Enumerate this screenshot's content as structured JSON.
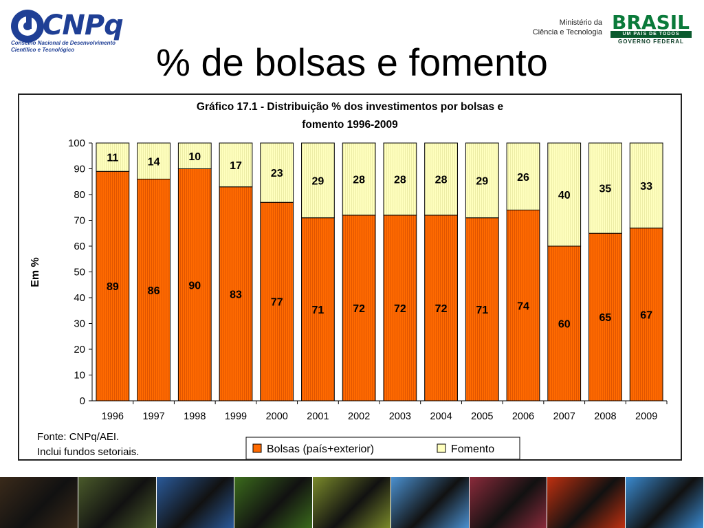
{
  "header": {
    "org_name": "CNPq",
    "org_subtitle_line1": "Conselho Nacional de Desenvolvimento",
    "org_subtitle_line2": "Científico e Tecnológico",
    "ministry_line1": "Ministério da",
    "ministry_line2": "Ciência e Tecnologia",
    "brasil_logo_text": "BRASIL",
    "brasil_tagline": "UM PAÍS DE TODOS",
    "brasil_gov": "GOVERNO FEDERAL"
  },
  "slide": {
    "title": "% de bolsas e fomento"
  },
  "chart_data": {
    "type": "bar",
    "stacked": true,
    "title_line1": "Gráfico 17.1 - Distribuição % dos investimentos por bolsas e",
    "title_line2": "fomento 1996-2009",
    "ylabel": "Em %",
    "xlabel": "",
    "ylim": [
      0,
      100
    ],
    "yticks": [
      0,
      10,
      20,
      30,
      40,
      50,
      60,
      70,
      80,
      90,
      100
    ],
    "categories": [
      "1996",
      "1997",
      "1998",
      "1999",
      "2000",
      "2001",
      "2002",
      "2003",
      "2004",
      "2005",
      "2006",
      "2007",
      "2008",
      "2009"
    ],
    "series": [
      {
        "name": "Bolsas (país+exterior)",
        "color": "#ff6a00",
        "values": [
          89,
          86,
          90,
          83,
          77,
          71,
          72,
          72,
          72,
          71,
          74,
          60,
          65,
          67
        ]
      },
      {
        "name": "Fomento",
        "color": "#ffffbe",
        "values": [
          11,
          14,
          10,
          17,
          23,
          29,
          28,
          28,
          28,
          29,
          26,
          40,
          35,
          33
        ]
      }
    ],
    "legend_position": "bottom",
    "grid": false,
    "note_line1": "Fonte: CNPq/AEI.",
    "note_line2": "Inclui fundos setoriais."
  },
  "footer": {
    "photos": [
      "fiber-optics-photo",
      "microscope-photo",
      "solar-panel-photo",
      "plants-photo",
      "circuit-board-photo",
      "syringe-photo",
      "dna-photo",
      "fire-photo",
      "technology-photo"
    ],
    "photo_colors": [
      "#3a2a1a",
      "#4a5a2a",
      "#2a5a9a",
      "#3b6b1c",
      "#7a8a2a",
      "#4a90d0",
      "#8a2a3a",
      "#c03010",
      "#3a8ad0"
    ]
  }
}
